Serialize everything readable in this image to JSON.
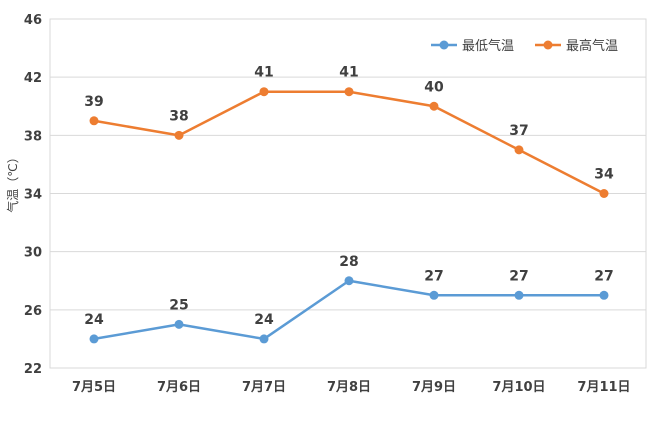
{
  "chart_data": {
    "type": "line",
    "categories": [
      "7月5日",
      "7月6日",
      "7月7日",
      "7月8日",
      "7月9日",
      "7月10日",
      "7月11日"
    ],
    "series": [
      {
        "name": "最低气温",
        "values": [
          24,
          25,
          24,
          28,
          27,
          27,
          27
        ],
        "color": "#5B9BD5"
      },
      {
        "name": "最高气温",
        "values": [
          39,
          38,
          41,
          41,
          40,
          37,
          34
        ],
        "color": "#ED7D31"
      }
    ],
    "ylabel": "气温（℃）",
    "ylim": [
      22,
      46
    ],
    "yticks": [
      22,
      26,
      30,
      34,
      38,
      42,
      46
    ],
    "grid": true,
    "legend_position": "top-right",
    "data_labels": true
  }
}
